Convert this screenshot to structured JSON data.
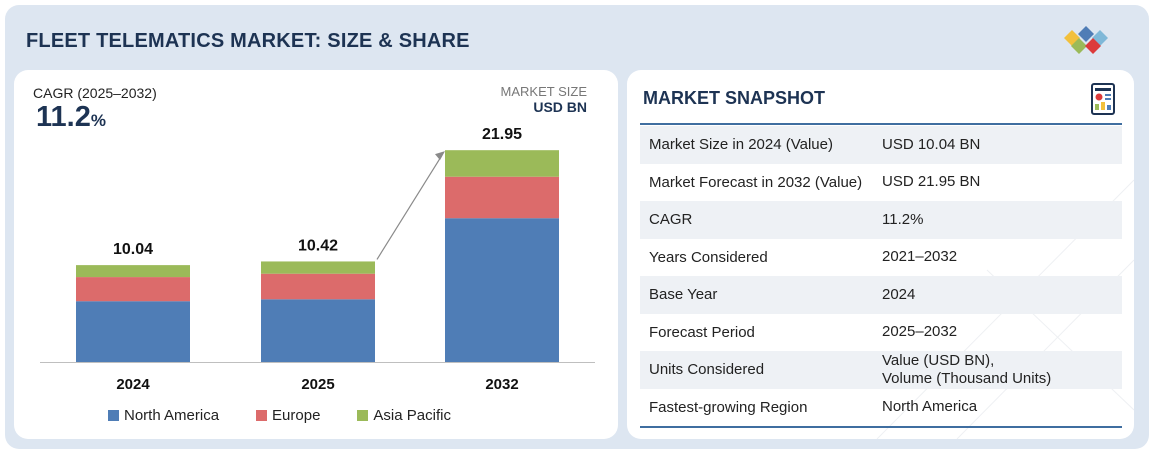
{
  "title": "FLEET TELEMATICS MARKET: SIZE & SHARE",
  "cagr": {
    "label": "CAGR (2025–2032)",
    "value": "11.2",
    "unit": "%"
  },
  "market_size": {
    "label": "MARKET SIZE",
    "unit": "USD BN"
  },
  "colors": {
    "north_america": "#4f7db6",
    "europe": "#dc6b6b",
    "asia_pacific": "#9bba59",
    "navy": "#1d3353",
    "rule": "#3f6ea0"
  },
  "icons": {
    "logo": "colored-diamonds-logo",
    "snapshot": "report-document-icon",
    "growth": "arrow-icon"
  },
  "chart_data": {
    "type": "bar",
    "stacked": true,
    "categories": [
      "2024",
      "2025",
      "2032"
    ],
    "series": [
      {
        "name": "North America",
        "values": [
          6.3,
          6.5,
          14.9
        ]
      },
      {
        "name": "Europe",
        "values": [
          2.5,
          2.65,
          4.3
        ]
      },
      {
        "name": "Asia Pacific",
        "values": [
          1.24,
          1.27,
          2.75
        ]
      }
    ],
    "totals": [
      "10.04",
      "10.42",
      "21.95"
    ],
    "ylabel": "USD BN",
    "ylim": [
      0,
      22
    ],
    "legend_position": "bottom",
    "grid": false,
    "annotation": "growth arrow from 2025 to 2032"
  },
  "snapshot": {
    "title": "MARKET SNAPSHOT",
    "rows": [
      {
        "key": "Market Size in 2024 (Value)",
        "value": "USD 10.04 BN"
      },
      {
        "key": "Market Forecast in 2032 (Value)",
        "value": "USD 21.95 BN"
      },
      {
        "key": "CAGR",
        "value": "11.2%"
      },
      {
        "key": "Years Considered",
        "value": "2021–2032"
      },
      {
        "key": "Base Year",
        "value": "2024"
      },
      {
        "key": "Forecast Period",
        "value": "2025–2032"
      },
      {
        "key": "Units Considered",
        "value": "Value (USD BN),",
        "value2": "Volume (Thousand Units)"
      },
      {
        "key": "Fastest-growing Region",
        "value": "North America"
      }
    ]
  }
}
